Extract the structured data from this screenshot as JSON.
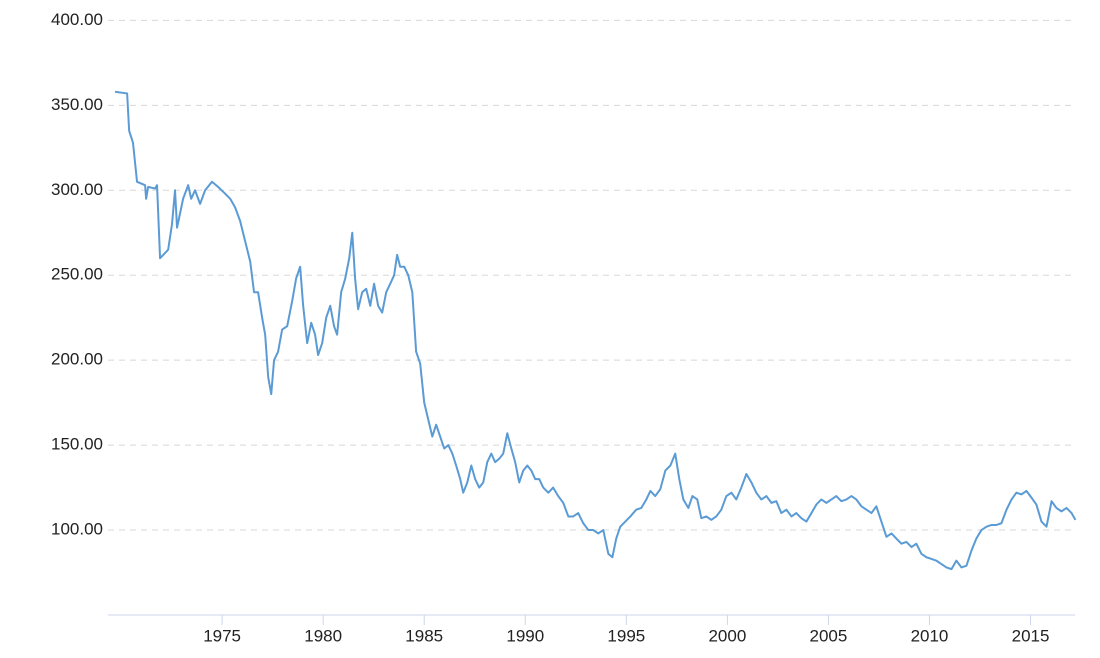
{
  "chart_data": {
    "type": "line",
    "x": [
      1969.7,
      1970.3,
      1970.4,
      1970.59,
      1970.79,
      1971.19,
      1971.24,
      1971.34,
      1971.68,
      1971.78,
      1971.93,
      1972.33,
      1972.52,
      1972.67,
      1972.77,
      1973.07,
      1973.32,
      1973.47,
      1973.66,
      1973.91,
      1974.16,
      1974.5,
      1974.8,
      1975.15,
      1975.4,
      1975.64,
      1975.89,
      1976.14,
      1976.39,
      1976.58,
      1976.78,
      1976.98,
      1977.13,
      1977.28,
      1977.43,
      1977.57,
      1977.77,
      1977.97,
      1978.22,
      1978.47,
      1978.66,
      1978.86,
      1979.01,
      1979.21,
      1979.41,
      1979.6,
      1979.75,
      1979.95,
      1980.15,
      1980.35,
      1980.54,
      1980.69,
      1980.89,
      1981.09,
      1981.29,
      1981.44,
      1981.58,
      1981.73,
      1981.93,
      1982.13,
      1982.33,
      1982.52,
      1982.72,
      1982.92,
      1983.12,
      1983.32,
      1983.51,
      1983.66,
      1983.81,
      1984.01,
      1984.21,
      1984.41,
      1984.6,
      1984.8,
      1985.0,
      1985.2,
      1985.4,
      1985.59,
      1985.79,
      1985.99,
      1986.19,
      1986.39,
      1986.58,
      1986.78,
      1986.93,
      1987.13,
      1987.33,
      1987.52,
      1987.72,
      1987.92,
      1988.12,
      1988.32,
      1988.51,
      1988.71,
      1988.91,
      1989.11,
      1989.31,
      1989.5,
      1989.7,
      1989.9,
      1990.1,
      1990.3,
      1990.49,
      1990.69,
      1990.89,
      1991.14,
      1991.38,
      1991.63,
      1991.88,
      1992.13,
      1992.37,
      1992.62,
      1992.87,
      1993.12,
      1993.36,
      1993.61,
      1993.86,
      1994.11,
      1994.31,
      1994.5,
      1994.7,
      1994.95,
      1995.2,
      1995.49,
      1995.74,
      1995.99,
      1996.19,
      1996.43,
      1996.68,
      1996.93,
      1997.18,
      1997.42,
      1997.62,
      1997.82,
      1998.07,
      1998.27,
      1998.51,
      1998.71,
      1998.96,
      1999.21,
      1999.45,
      1999.7,
      1999.95,
      2000.2,
      2000.44,
      2000.69,
      2000.94,
      2001.19,
      2001.43,
      2001.68,
      2001.93,
      2002.18,
      2002.42,
      2002.67,
      2002.92,
      2003.17,
      2003.41,
      2003.66,
      2003.91,
      2004.16,
      2004.4,
      2004.65,
      2004.9,
      2005.15,
      2005.39,
      2005.64,
      2005.89,
      2006.14,
      2006.38,
      2006.63,
      2006.88,
      2007.13,
      2007.37,
      2007.62,
      2007.87,
      2008.12,
      2008.36,
      2008.61,
      2008.86,
      2009.11,
      2009.35,
      2009.6,
      2009.85,
      2010.1,
      2010.34,
      2010.59,
      2010.84,
      2011.09,
      2011.33,
      2011.58,
      2011.83,
      2012.08,
      2012.32,
      2012.57,
      2012.82,
      2013.07,
      2013.31,
      2013.56,
      2013.81,
      2014.06,
      2014.3,
      2014.55,
      2014.8,
      2015.05,
      2015.29,
      2015.54,
      2015.79,
      2016.04,
      2016.28,
      2016.53,
      2016.78,
      2017.03,
      2017.22
    ],
    "series": [
      {
        "color": "#5b9bd5",
        "values": [
          358,
          357,
          335,
          328,
          305,
          303,
          295,
          302,
          301,
          303,
          260,
          265,
          280,
          300,
          278,
          295,
          303,
          295,
          300,
          292,
          300,
          305,
          302,
          298,
          295,
          290,
          282,
          270,
          258,
          240,
          240,
          225,
          215,
          190,
          180,
          200,
          205,
          218,
          220,
          235,
          248,
          255,
          232,
          210,
          222,
          215,
          203,
          210,
          225,
          232,
          220,
          215,
          240,
          248,
          260,
          275,
          248,
          230,
          240,
          242,
          232,
          245,
          232,
          228,
          240,
          245,
          250,
          262,
          255,
          255,
          250,
          240,
          205,
          198,
          175,
          165,
          155,
          162,
          155,
          148,
          150,
          145,
          138,
          130,
          122,
          128,
          138,
          130,
          125,
          128,
          140,
          145,
          140,
          142,
          145,
          157,
          148,
          140,
          128,
          135,
          138,
          135,
          130,
          130,
          125,
          122,
          125,
          120,
          116,
          108,
          108,
          110,
          104,
          100,
          100,
          98,
          100,
          86,
          84,
          95,
          102,
          105,
          108,
          112,
          113,
          118,
          123,
          120,
          124,
          135,
          138,
          145,
          130,
          118,
          113,
          120,
          118,
          107,
          108,
          106,
          108,
          112,
          120,
          122,
          118,
          125,
          133,
          128,
          122,
          118,
          120,
          116,
          117,
          110,
          112,
          108,
          110,
          107,
          105,
          110,
          115,
          118,
          116,
          118,
          120,
          117,
          118,
          120,
          118,
          114,
          112,
          110,
          114,
          105,
          96,
          98,
          95,
          92,
          93,
          90,
          92,
          86,
          84,
          83,
          82,
          80,
          78,
          77,
          82,
          78,
          79,
          88,
          95,
          100,
          102,
          103,
          103,
          104,
          112,
          118,
          122,
          121,
          123,
          119,
          115,
          105,
          102,
          117,
          113,
          111,
          113,
          110,
          106
        ]
      }
    ],
    "xlim": [
      1969.7,
      2017.2
    ],
    "xticks": [
      1975,
      1980,
      1985,
      1990,
      1995,
      2000,
      2005,
      2010,
      2015
    ],
    "ylim": [
      50,
      412
    ],
    "yticks": [
      {
        "value": 100,
        "label": "100.00"
      },
      {
        "value": 150,
        "label": "150.00"
      },
      {
        "value": 200,
        "label": "200.00"
      },
      {
        "value": 250,
        "label": "250.00"
      },
      {
        "value": 300,
        "label": "300.00"
      },
      {
        "value": 350,
        "label": "350.00"
      },
      {
        "value": 400,
        "label": "400.00"
      }
    ],
    "grid": true
  }
}
